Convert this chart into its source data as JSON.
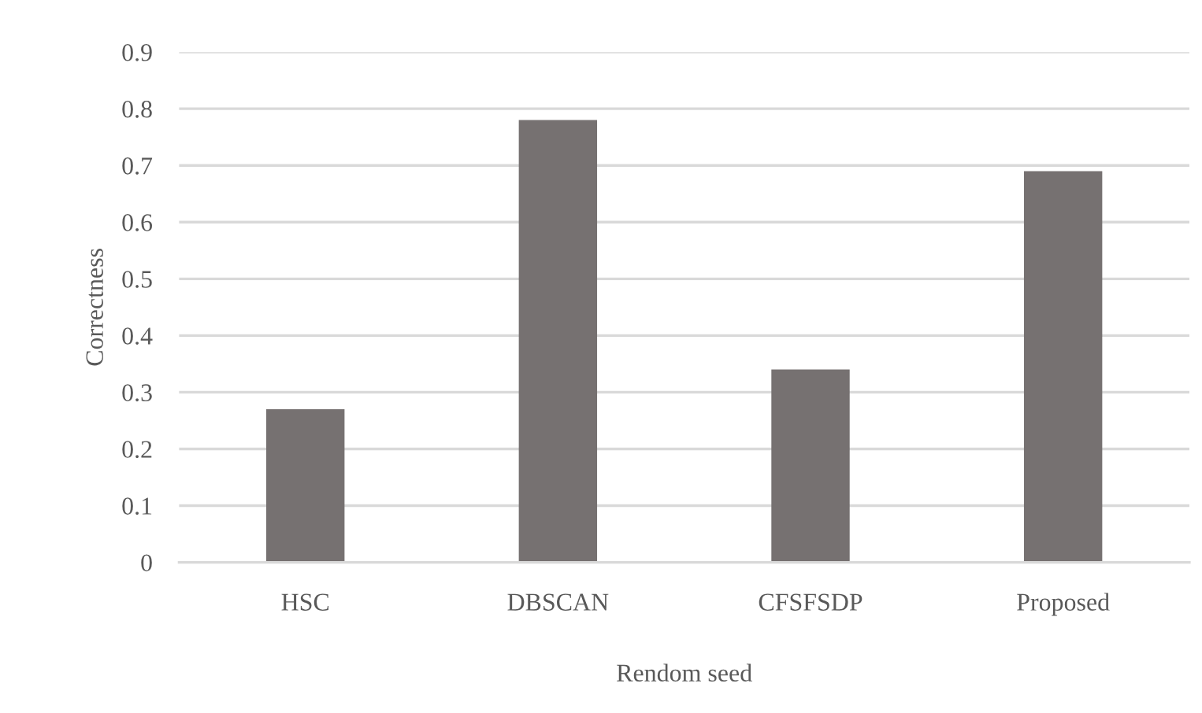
{
  "chart_data": {
    "type": "bar",
    "xlabel": "Rendom seed",
    "ylabel": "Correctness",
    "categories": [
      "HSC",
      "DBSCAN",
      "CFSFSDP",
      "Proposed"
    ],
    "values": [
      0.27,
      0.78,
      0.34,
      0.69
    ],
    "color": "#767171",
    "ylim": [
      0,
      0.9
    ],
    "yticks": [
      0,
      0.1,
      0.2,
      0.3,
      0.4,
      0.5,
      0.6,
      0.7,
      0.8,
      0.9
    ],
    "grid": "y"
  }
}
